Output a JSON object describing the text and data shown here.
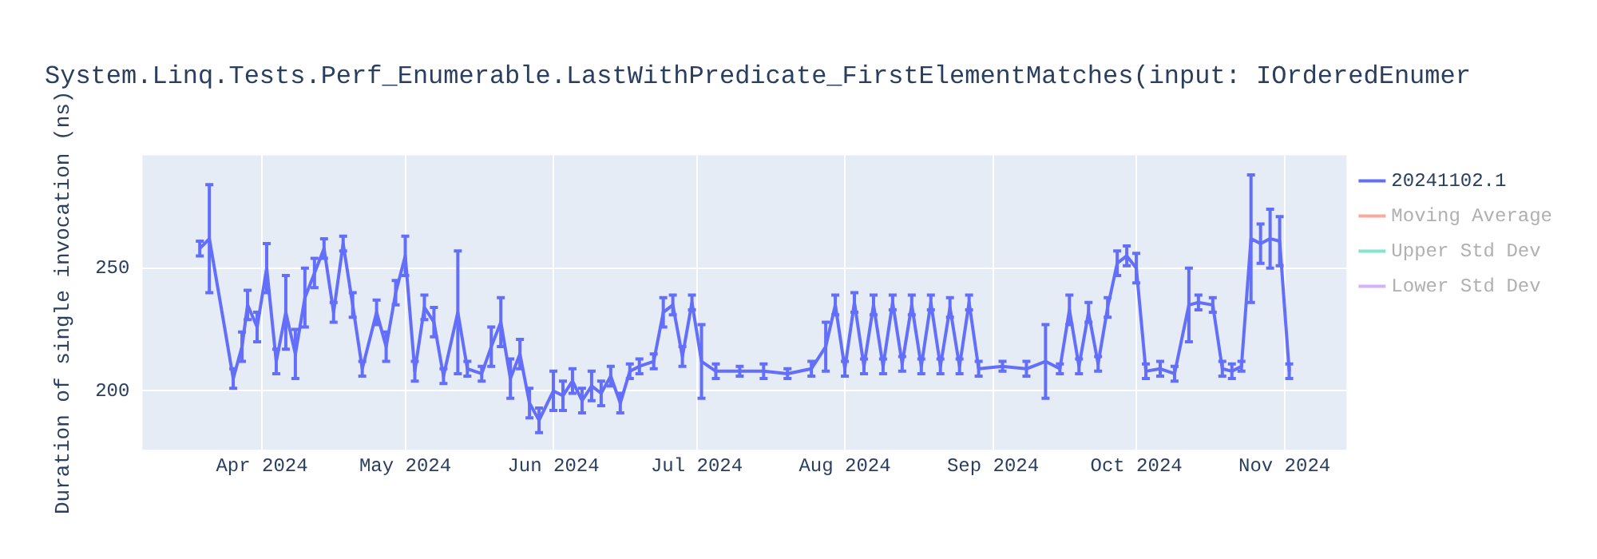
{
  "chart_data": {
    "type": "line",
    "title": "System.Linq.Tests.Perf_Enumerable.LastWithPredicate_FirstElementMatches(input: IOrderedEnumer",
    "ylabel": "Duration of single invocation (ns)",
    "xlim": [
      "2024-03-07",
      "2024-11-14"
    ],
    "xticks": [
      {
        "value": "2024-04-01",
        "label": "Apr 2024"
      },
      {
        "value": "2024-05-01",
        "label": "May 2024"
      },
      {
        "value": "2024-06-01",
        "label": "Jun 2024"
      },
      {
        "value": "2024-07-01",
        "label": "Jul 2024"
      },
      {
        "value": "2024-08-01",
        "label": "Aug 2024"
      },
      {
        "value": "2024-09-01",
        "label": "Sep 2024"
      },
      {
        "value": "2024-10-01",
        "label": "Oct 2024"
      },
      {
        "value": "2024-11-01",
        "label": "Nov 2024"
      }
    ],
    "ylim": [
      176,
      296
    ],
    "yticks": [
      200,
      250
    ],
    "grid": true,
    "legend": "top right",
    "line_style": "solid",
    "series": [
      {
        "name": "20241102.1",
        "color": "#636efa",
        "x": [
          "2024-03-19",
          "2024-03-21",
          "2024-03-24",
          "2024-03-26",
          "2024-03-27T20:00",
          "2024-03-29",
          "2024-03-31",
          "2024-04-02",
          "2024-04-04",
          "2024-04-06",
          "2024-04-08",
          "2024-04-10",
          "2024-04-12",
          "2024-04-14",
          "2024-04-16",
          "2024-04-18",
          "2024-04-20",
          "2024-04-22",
          "2024-04-25",
          "2024-04-27",
          "2024-04-29",
          "2024-05-01",
          "2024-05-03",
          "2024-05-05",
          "2024-05-07",
          "2024-05-09",
          "2024-05-12",
          "2024-05-14",
          "2024-05-17",
          "2024-05-19",
          "2024-05-21",
          "2024-05-23",
          "2024-05-25",
          "2024-05-27",
          "2024-05-29",
          "2024-06-01",
          "2024-06-03",
          "2024-06-05",
          "2024-06-07",
          "2024-06-09",
          "2024-06-11",
          "2024-06-13",
          "2024-06-15",
          "2024-06-17",
          "2024-06-19",
          "2024-06-22",
          "2024-06-24",
          "2024-06-26",
          "2024-06-28",
          "2024-06-30",
          "2024-07-02",
          "2024-07-05",
          "2024-07-10",
          "2024-07-15",
          "2024-07-20",
          "2024-07-25",
          "2024-07-28",
          "2024-07-30",
          "2024-08-01",
          "2024-08-03",
          "2024-08-05",
          "2024-08-07",
          "2024-08-09",
          "2024-08-11",
          "2024-08-13",
          "2024-08-15",
          "2024-08-17",
          "2024-08-19",
          "2024-08-21",
          "2024-08-23",
          "2024-08-25",
          "2024-08-27",
          "2024-08-29",
          "2024-09-03",
          "2024-09-08",
          "2024-09-12",
          "2024-09-15",
          "2024-09-17",
          "2024-09-19",
          "2024-09-21",
          "2024-09-23",
          "2024-09-25",
          "2024-09-27",
          "2024-09-29",
          "2024-10-01",
          "2024-10-03",
          "2024-10-06",
          "2024-10-09",
          "2024-10-12",
          "2024-10-14",
          "2024-10-17",
          "2024-10-19",
          "2024-10-21",
          "2024-10-23",
          "2024-10-25",
          "2024-10-27",
          "2024-10-29",
          "2024-10-31",
          "2024-11-02"
        ],
        "values": [
          258,
          262,
          228,
          205,
          218,
          235,
          226,
          250,
          212,
          232,
          215,
          238,
          248,
          258,
          232,
          260,
          235,
          209,
          232,
          218,
          240,
          255,
          208,
          234,
          228,
          206,
          232,
          209,
          207,
          218,
          228,
          205,
          215,
          195,
          188,
          200,
          198,
          204,
          196,
          202,
          199,
          206,
          195,
          208,
          210,
          212,
          232,
          235,
          214,
          236,
          212,
          208,
          208,
          208,
          207,
          209,
          218,
          235,
          209,
          236,
          210,
          235,
          210,
          236,
          211,
          235,
          210,
          236,
          210,
          234,
          210,
          236,
          209,
          210,
          209,
          212,
          209,
          233,
          210,
          232,
          211,
          234,
          252,
          255,
          250,
          208,
          209,
          207,
          235,
          236,
          235,
          209,
          208,
          210,
          262,
          260,
          262,
          261,
          208
        ],
        "errors": [
          3,
          22,
          null,
          4,
          6,
          6,
          6,
          10,
          5,
          15,
          10,
          12,
          6,
          4,
          4,
          3,
          5,
          3,
          5,
          6,
          5,
          8,
          4,
          5,
          6,
          3,
          25,
          3,
          3,
          8,
          10,
          8,
          6,
          6,
          5,
          8,
          6,
          5,
          5,
          6,
          5,
          4,
          4,
          3,
          3,
          3,
          6,
          4,
          4,
          3,
          15,
          3,
          2,
          3,
          2,
          3,
          10,
          4,
          3,
          4,
          3,
          4,
          3,
          3,
          3,
          4,
          3,
          3,
          3,
          4,
          3,
          3,
          3,
          2,
          3,
          15,
          2,
          6,
          3,
          4,
          3,
          4,
          5,
          4,
          6,
          3,
          3,
          3,
          15,
          3,
          3,
          3,
          3,
          2,
          26,
          8,
          12,
          10,
          3
        ]
      },
      {
        "name": "Moving Average",
        "color": "#f7aa9d"
      },
      {
        "name": "Upper Std Dev",
        "color": "#80e5cb"
      },
      {
        "name": "Lower Std Dev",
        "color": "#d5b1fd"
      }
    ]
  }
}
